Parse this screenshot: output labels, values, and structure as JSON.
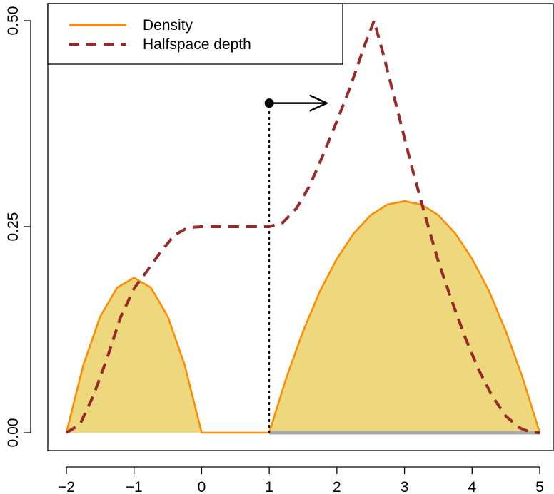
{
  "chart_data": {
    "type": "line",
    "title": "",
    "xlabel": "",
    "ylabel": "",
    "xlim": [
      -2,
      5
    ],
    "ylim": [
      0,
      0.5
    ],
    "x_ticks": [
      "−2",
      "−1",
      "0",
      "1",
      "2",
      "3",
      "4",
      "5"
    ],
    "x_tick_values": [
      -2,
      -1,
      0,
      1,
      2,
      3,
      4,
      5
    ],
    "y_ticks": [
      "0.00",
      "0.25",
      "0.50"
    ],
    "y_tick_values": [
      0,
      0.25,
      0.5
    ],
    "grid": false,
    "legend": {
      "position": "top-left",
      "entries": [
        {
          "label": "Density",
          "color": "#ff8c00",
          "style": "solid"
        },
        {
          "label": "Halfspace depth",
          "color": "#982a2a",
          "style": "dashed"
        }
      ]
    },
    "density": {
      "name": "Density",
      "color": "#ff8c00",
      "fill": "#eed87e",
      "x": [
        -2,
        -1.75,
        -1.5,
        -1.25,
        -1,
        -0.75,
        -0.5,
        -0.25,
        0,
        0.5,
        1,
        1.25,
        1.5,
        1.75,
        2,
        2.25,
        2.5,
        2.75,
        3,
        3.25,
        3.5,
        3.75,
        4,
        4.25,
        4.5,
        4.75,
        5
      ],
      "y": [
        0,
        0.082,
        0.141,
        0.176,
        0.188,
        0.176,
        0.141,
        0.082,
        0,
        0,
        0,
        0.066,
        0.123,
        0.172,
        0.211,
        0.242,
        0.264,
        0.277,
        0.281,
        0.277,
        0.264,
        0.242,
        0.211,
        0.172,
        0.123,
        0.066,
        0
      ]
    },
    "depth": {
      "name": "Halfspace depth",
      "color": "#982a2a",
      "x": [
        -2,
        -1.8,
        -1.6,
        -1.4,
        -1.2,
        -1,
        -0.8,
        -0.6,
        -0.4,
        -0.2,
        0,
        0.2,
        0.5,
        0.8,
        1,
        1.2,
        1.4,
        1.6,
        1.8,
        2,
        2.2,
        2.4,
        2.55,
        2.7,
        2.9,
        3.1,
        3.3,
        3.5,
        3.7,
        3.9,
        4.1,
        4.3,
        4.5,
        4.7,
        4.85,
        5
      ],
      "y": [
        0,
        0.01,
        0.045,
        0.09,
        0.14,
        0.175,
        0.197,
        0.22,
        0.24,
        0.249,
        0.25,
        0.25,
        0.25,
        0.25,
        0.25,
        0.255,
        0.272,
        0.3,
        0.338,
        0.378,
        0.42,
        0.468,
        0.5,
        0.455,
        0.39,
        0.325,
        0.265,
        0.208,
        0.16,
        0.115,
        0.076,
        0.044,
        0.02,
        0.006,
        0.001,
        0
      ]
    },
    "gray_segment": {
      "x": [
        1,
        5
      ],
      "y": 0,
      "color": "#a9a9a9"
    },
    "vertical_dotted": {
      "x": 1,
      "y": [
        0,
        0.4
      ]
    },
    "marker": {
      "x": 1,
      "y": 0.4
    },
    "arrow": {
      "from": [
        1,
        0.4
      ],
      "to": [
        1.85,
        0.4
      ]
    }
  }
}
